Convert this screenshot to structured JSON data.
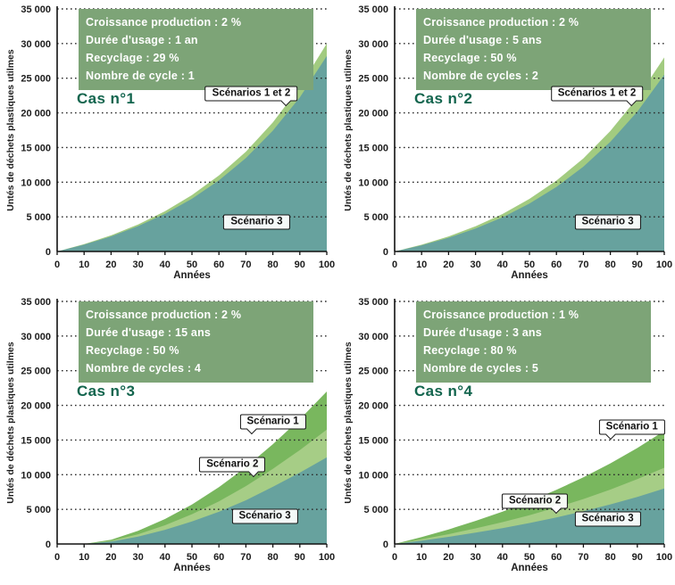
{
  "chart_data": [
    {
      "type": "area",
      "title": "Cas n°1",
      "params": [
        "Croissance production : 2 %",
        "Durée d'usage : 1 an",
        "Recyclage : 29 %",
        "Nombre de cycle : 1"
      ],
      "xlabel": "Années",
      "ylabel": "Untés de déchets plastiques utilmes",
      "xlim": [
        0,
        100
      ],
      "ylim": [
        0,
        35000
      ],
      "xticks": [
        0,
        10,
        20,
        30,
        40,
        50,
        60,
        70,
        80,
        90,
        100
      ],
      "yticks": [
        0,
        5000,
        10000,
        15000,
        20000,
        25000,
        30000,
        35000
      ],
      "ytick_labels": [
        "0",
        "5 000",
        "10 000",
        "15 000",
        "20 000",
        "25 000",
        "30 000",
        "35 000"
      ],
      "grid": "dotted-horizontal",
      "x": [
        0,
        10,
        20,
        30,
        40,
        50,
        60,
        70,
        80,
        90,
        100
      ],
      "series": [
        {
          "name": "Scénarios 1 et 2",
          "color": "#a2cb80",
          "values": [
            0,
            1050,
            2330,
            3900,
            5800,
            8130,
            10960,
            14400,
            18620,
            23750,
            30000
          ]
        },
        {
          "name": "Scénario 3",
          "color": "#67a29e",
          "values": [
            0,
            980,
            2180,
            3650,
            5430,
            7610,
            10260,
            13480,
            17430,
            22230,
            28200
          ]
        }
      ],
      "annotations": [
        {
          "label": "Scénarios 1 et 2",
          "x": 72,
          "y": 22800,
          "tail": "br"
        },
        {
          "label": "Scénario 3",
          "x": 74,
          "y": 4300,
          "tail": "none"
        }
      ]
    },
    {
      "type": "area",
      "title": "Cas n°2",
      "params": [
        "Croissance production : 2 %",
        "Durée d'usage : 5 ans",
        "Recyclage : 50 %",
        "Nombre de cycles : 2"
      ],
      "xlabel": "Années",
      "ylabel": "Untés de déchets plastiques utilmes",
      "xlim": [
        0,
        100
      ],
      "ylim": [
        0,
        35000
      ],
      "xticks": [
        0,
        10,
        20,
        30,
        40,
        50,
        60,
        70,
        80,
        90,
        100
      ],
      "yticks": [
        0,
        5000,
        10000,
        15000,
        20000,
        25000,
        30000,
        35000
      ],
      "ytick_labels": [
        "0",
        "5 000",
        "10 000",
        "15 000",
        "20 000",
        "25 000",
        "30 000",
        "35 000"
      ],
      "grid": "dotted-horizontal",
      "x": [
        0,
        10,
        20,
        30,
        40,
        50,
        60,
        70,
        80,
        90,
        100
      ],
      "series": [
        {
          "name": "Scénarios 1 et 2",
          "color": "#a2cb80",
          "values": [
            0,
            980,
            2170,
            3640,
            5410,
            7590,
            10230,
            13440,
            17380,
            22170,
            28000
          ]
        },
        {
          "name": "Scénario 3",
          "color": "#67a29e",
          "values": [
            0,
            890,
            1980,
            3310,
            4930,
            6910,
            9310,
            12240,
            15830,
            20180,
            25500
          ]
        }
      ],
      "annotations": [
        {
          "label": "Scénarios 1 et 2",
          "x": 75,
          "y": 22800,
          "tail": "br"
        },
        {
          "label": "Scénario 3",
          "x": 79,
          "y": 4300,
          "tail": "none"
        }
      ]
    },
    {
      "type": "area",
      "title": "Cas n°3",
      "params": [
        "Croissance production : 2 %",
        "Durée d'usage : 15 ans",
        "Recyclage : 50 %",
        "Nombre de cycles : 4"
      ],
      "xlabel": "Années",
      "ylabel": "Untés de déchets plastiques utilmes",
      "xlim": [
        0,
        100
      ],
      "ylim": [
        0,
        35000
      ],
      "xticks": [
        0,
        10,
        20,
        30,
        40,
        50,
        60,
        70,
        80,
        90,
        100
      ],
      "yticks": [
        0,
        5000,
        10000,
        15000,
        20000,
        25000,
        30000,
        35000
      ],
      "ytick_labels": [
        "0",
        "5 000",
        "10 000",
        "15 000",
        "20 000",
        "25 000",
        "30 000",
        "35 000"
      ],
      "grid": "dotted-horizontal",
      "x": [
        0,
        10,
        20,
        30,
        40,
        50,
        60,
        70,
        80,
        90,
        100
      ],
      "series": [
        {
          "name": "Scénario 1",
          "color": "#79b75e",
          "values": [
            0,
            0,
            600,
            1900,
            3600,
            5700,
            8200,
            11100,
            14400,
            18000,
            22000
          ]
        },
        {
          "name": "Scénario 2",
          "color": "#a6cd86",
          "values": [
            0,
            0,
            450,
            1400,
            2700,
            4300,
            6150,
            8350,
            10850,
            13550,
            16500
          ]
        },
        {
          "name": "Scénario 3",
          "color": "#67a29e",
          "values": [
            0,
            0,
            350,
            1050,
            2050,
            3250,
            4650,
            6300,
            8250,
            10300,
            12500
          ]
        }
      ],
      "annotations": [
        {
          "label": "Scénario 1",
          "x": 80,
          "y": 17600,
          "tail": "bl"
        },
        {
          "label": "Scénario 2",
          "x": 65,
          "y": 11500,
          "tail": "br"
        },
        {
          "label": "Scénario 3",
          "x": 77,
          "y": 4000,
          "tail": "none"
        }
      ]
    },
    {
      "type": "area",
      "title": "Cas n°4",
      "params": [
        "Croissance production : 1 %",
        "Durée d'usage : 3 ans",
        "Recyclage : 80 %",
        "Nombre de cycles : 5"
      ],
      "xlabel": "Années",
      "ylabel": "Untés de déchets plastiques utilmes",
      "xlim": [
        0,
        100
      ],
      "ylim": [
        0,
        35000
      ],
      "xticks": [
        0,
        10,
        20,
        30,
        40,
        50,
        60,
        70,
        80,
        90,
        100
      ],
      "yticks": [
        0,
        5000,
        10000,
        15000,
        20000,
        25000,
        30000,
        35000
      ],
      "ytick_labels": [
        "0",
        "5 000",
        "10 000",
        "15 000",
        "20 000",
        "25 000",
        "30 000",
        "35 000"
      ],
      "grid": "dotted-horizontal",
      "x": [
        0,
        10,
        20,
        30,
        40,
        50,
        60,
        70,
        80,
        90,
        100
      ],
      "series": [
        {
          "name": "Scénario 1",
          "color": "#79b75e",
          "values": [
            0,
            1000,
            2100,
            3330,
            4670,
            6160,
            7810,
            9620,
            11630,
            13850,
            16300
          ]
        },
        {
          "name": "Scénario 2",
          "color": "#a6cd86",
          "values": [
            0,
            680,
            1420,
            2250,
            3150,
            4160,
            5270,
            6490,
            7850,
            9350,
            11000
          ]
        },
        {
          "name": "Scénario 3",
          "color": "#67a29e",
          "values": [
            0,
            490,
            1030,
            1630,
            2290,
            3020,
            3830,
            4720,
            5710,
            6800,
            8000
          ]
        }
      ],
      "annotations": [
        {
          "label": "Scénario 1",
          "x": 88,
          "y": 16800,
          "tail": "bl"
        },
        {
          "label": "Scénario 2",
          "x": 52,
          "y": 6200,
          "tail": "br"
        },
        {
          "label": "Scénario 3",
          "x": 79,
          "y": 3600,
          "tail": "none"
        }
      ]
    }
  ],
  "colors": {
    "param_box": "#7da477",
    "title": "#13654e",
    "teal_area": "#67a29e",
    "green_area": "#a2cb80",
    "dark_green_area": "#79b75e"
  }
}
